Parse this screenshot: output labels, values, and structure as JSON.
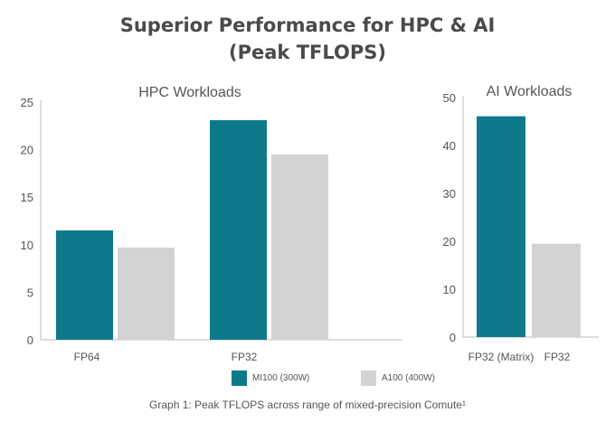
{
  "title_line1": "Superior Performance for HPC & AI",
  "title_line2": "(Peak TFLOPS)",
  "caption": "Graph 1: Peak TFLOPS across range of mixed-precision Comute¹",
  "legend": [
    {
      "name": "MI100 (300W)",
      "color": "#0d7a8c"
    },
    {
      "name": "A100 (400W)",
      "color": "#d3d3d3"
    }
  ],
  "chart_data": [
    {
      "type": "bar",
      "title": "HPC Workloads",
      "categories": [
        "FP64",
        "FP32"
      ],
      "ylim": [
        0,
        25
      ],
      "yticks": [
        0,
        5,
        10,
        15,
        20,
        25
      ],
      "series": [
        {
          "name": "MI100 (300W)",
          "color": "#0d7a8c",
          "values": [
            11.5,
            23.1
          ]
        },
        {
          "name": "A100 (400W)",
          "color": "#d3d3d3",
          "values": [
            9.7,
            19.5
          ]
        }
      ]
    },
    {
      "type": "bar",
      "title": "AI Workloads",
      "categories": [
        "FP32 (Matrix)",
        "FP32"
      ],
      "ylim": [
        0,
        50
      ],
      "yticks": [
        0,
        10,
        20,
        30,
        40,
        50
      ],
      "series": [
        {
          "name": "",
          "values": [
            46.1,
            19.5
          ],
          "colors": [
            "#0d7a8c",
            "#d3d3d3"
          ]
        }
      ]
    }
  ]
}
